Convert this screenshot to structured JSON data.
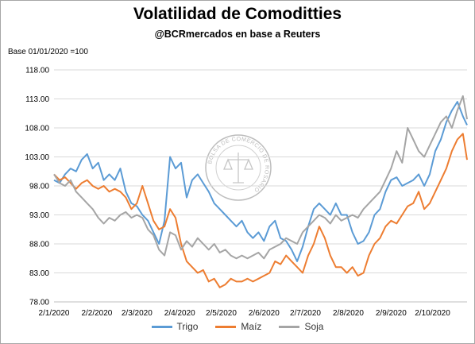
{
  "title": "Volatilidad de Comoditties",
  "subtitle": "@BCRmercados en base a Reuters",
  "base_note": "Base 01/01/2020 =100",
  "watermark_text": "BOLSA DE COMERCIO DE ROSARIO",
  "chart_data": {
    "type": "line",
    "y_ticks": [
      "118.00",
      "113.00",
      "108.00",
      "103.00",
      "98.00",
      "93.00",
      "88.00",
      "83.00",
      "78.00"
    ],
    "ylim": [
      78,
      118
    ],
    "x_ticks": [
      "2/1/2020",
      "2/2/2020",
      "2/3/2020",
      "2/4/2020",
      "2/5/2020",
      "2/6/2020",
      "2/7/2020",
      "2/8/2020",
      "2/9/2020",
      "2/10/2020"
    ],
    "x_dates": [
      "2020-01-02",
      "2020-02-02",
      "2020-03-02",
      "2020-04-02",
      "2020-05-02",
      "2020-06-02",
      "2020-07-02",
      "2020-08-02",
      "2020-09-02",
      "2020-10-02"
    ],
    "xlim": [
      "2020-01-02",
      "2020-10-27"
    ],
    "grid": "horizontal",
    "legend_position": "bottom",
    "series": [
      {
        "name": "Trigo",
        "color": "#5b9bd5",
        "points": [
          [
            "2020-01-02",
            99
          ],
          [
            "2020-01-06",
            98.5
          ],
          [
            "2020-01-10",
            100
          ],
          [
            "2020-01-14",
            101
          ],
          [
            "2020-01-18",
            100.5
          ],
          [
            "2020-01-22",
            102.5
          ],
          [
            "2020-01-26",
            103.5
          ],
          [
            "2020-01-30",
            101
          ],
          [
            "2020-02-03",
            102
          ],
          [
            "2020-02-07",
            99
          ],
          [
            "2020-02-11",
            100
          ],
          [
            "2020-02-15",
            99
          ],
          [
            "2020-02-19",
            101
          ],
          [
            "2020-02-23",
            97
          ],
          [
            "2020-02-27",
            95
          ],
          [
            "2020-03-02",
            94.5
          ],
          [
            "2020-03-06",
            93
          ],
          [
            "2020-03-10",
            92
          ],
          [
            "2020-03-14",
            90
          ],
          [
            "2020-03-18",
            88
          ],
          [
            "2020-03-22",
            92
          ],
          [
            "2020-03-26",
            103
          ],
          [
            "2020-03-30",
            101
          ],
          [
            "2020-04-03",
            102
          ],
          [
            "2020-04-07",
            96
          ],
          [
            "2020-04-11",
            99
          ],
          [
            "2020-04-15",
            100
          ],
          [
            "2020-04-19",
            98.5
          ],
          [
            "2020-04-23",
            97
          ],
          [
            "2020-04-27",
            95
          ],
          [
            "2020-05-01",
            94
          ],
          [
            "2020-05-05",
            93
          ],
          [
            "2020-05-09",
            92
          ],
          [
            "2020-05-13",
            91
          ],
          [
            "2020-05-17",
            92
          ],
          [
            "2020-05-21",
            90
          ],
          [
            "2020-05-25",
            89
          ],
          [
            "2020-05-29",
            90
          ],
          [
            "2020-06-02",
            88.5
          ],
          [
            "2020-06-06",
            91
          ],
          [
            "2020-06-10",
            92
          ],
          [
            "2020-06-14",
            89
          ],
          [
            "2020-06-18",
            88.5
          ],
          [
            "2020-06-22",
            87
          ],
          [
            "2020-06-26",
            85
          ],
          [
            "2020-06-30",
            87.5
          ],
          [
            "2020-07-04",
            91
          ],
          [
            "2020-07-08",
            94
          ],
          [
            "2020-07-12",
            95
          ],
          [
            "2020-07-16",
            94
          ],
          [
            "2020-07-20",
            93
          ],
          [
            "2020-07-24",
            95
          ],
          [
            "2020-07-28",
            93
          ],
          [
            "2020-08-01",
            93
          ],
          [
            "2020-08-05",
            90
          ],
          [
            "2020-08-09",
            88
          ],
          [
            "2020-08-13",
            88.5
          ],
          [
            "2020-08-17",
            90
          ],
          [
            "2020-08-21",
            93
          ],
          [
            "2020-08-25",
            94
          ],
          [
            "2020-08-29",
            97
          ],
          [
            "2020-09-02",
            99
          ],
          [
            "2020-09-06",
            99.5
          ],
          [
            "2020-09-10",
            98
          ],
          [
            "2020-09-14",
            98.5
          ],
          [
            "2020-09-18",
            99
          ],
          [
            "2020-09-22",
            100
          ],
          [
            "2020-09-26",
            98
          ],
          [
            "2020-09-30",
            100
          ],
          [
            "2020-10-04",
            104
          ],
          [
            "2020-10-08",
            106
          ],
          [
            "2020-10-12",
            109
          ],
          [
            "2020-10-16",
            111
          ],
          [
            "2020-10-20",
            112.5
          ],
          [
            "2020-10-24",
            110
          ],
          [
            "2020-10-27",
            108.5
          ]
        ]
      },
      {
        "name": "Maíz",
        "color": "#ed7d31",
        "points": [
          [
            "2020-01-02",
            100
          ],
          [
            "2020-01-06",
            99
          ],
          [
            "2020-01-10",
            99.5
          ],
          [
            "2020-01-14",
            98.5
          ],
          [
            "2020-01-18",
            97.5
          ],
          [
            "2020-01-22",
            98.5
          ],
          [
            "2020-01-26",
            99
          ],
          [
            "2020-01-30",
            98
          ],
          [
            "2020-02-03",
            97.5
          ],
          [
            "2020-02-07",
            98
          ],
          [
            "2020-02-11",
            97
          ],
          [
            "2020-02-15",
            97.5
          ],
          [
            "2020-02-19",
            97
          ],
          [
            "2020-02-23",
            96
          ],
          [
            "2020-02-27",
            94
          ],
          [
            "2020-03-02",
            95
          ],
          [
            "2020-03-06",
            98
          ],
          [
            "2020-03-10",
            95
          ],
          [
            "2020-03-14",
            92
          ],
          [
            "2020-03-18",
            90.5
          ],
          [
            "2020-03-22",
            91
          ],
          [
            "2020-03-26",
            94
          ],
          [
            "2020-03-30",
            92.5
          ],
          [
            "2020-04-03",
            88
          ],
          [
            "2020-04-07",
            85
          ],
          [
            "2020-04-11",
            84
          ],
          [
            "2020-04-15",
            83
          ],
          [
            "2020-04-19",
            83.5
          ],
          [
            "2020-04-23",
            81.5
          ],
          [
            "2020-04-27",
            82
          ],
          [
            "2020-05-01",
            80.5
          ],
          [
            "2020-05-05",
            81
          ],
          [
            "2020-05-09",
            82
          ],
          [
            "2020-05-13",
            81.5
          ],
          [
            "2020-05-17",
            81.5
          ],
          [
            "2020-05-21",
            82
          ],
          [
            "2020-05-25",
            81.5
          ],
          [
            "2020-05-29",
            82
          ],
          [
            "2020-06-02",
            82.5
          ],
          [
            "2020-06-06",
            83
          ],
          [
            "2020-06-10",
            85
          ],
          [
            "2020-06-14",
            84.5
          ],
          [
            "2020-06-18",
            86
          ],
          [
            "2020-06-22",
            85
          ],
          [
            "2020-06-26",
            84
          ],
          [
            "2020-06-30",
            83
          ],
          [
            "2020-07-04",
            86
          ],
          [
            "2020-07-08",
            88
          ],
          [
            "2020-07-12",
            91
          ],
          [
            "2020-07-16",
            89
          ],
          [
            "2020-07-20",
            86
          ],
          [
            "2020-07-24",
            84
          ],
          [
            "2020-07-28",
            84
          ],
          [
            "2020-08-01",
            83
          ],
          [
            "2020-08-05",
            84
          ],
          [
            "2020-08-09",
            82.5
          ],
          [
            "2020-08-13",
            83
          ],
          [
            "2020-08-17",
            86
          ],
          [
            "2020-08-21",
            88
          ],
          [
            "2020-08-25",
            89
          ],
          [
            "2020-08-29",
            91
          ],
          [
            "2020-09-02",
            92
          ],
          [
            "2020-09-06",
            91.5
          ],
          [
            "2020-09-10",
            93
          ],
          [
            "2020-09-14",
            94.5
          ],
          [
            "2020-09-18",
            95
          ],
          [
            "2020-09-22",
            97
          ],
          [
            "2020-09-26",
            94
          ],
          [
            "2020-09-30",
            95
          ],
          [
            "2020-10-04",
            97
          ],
          [
            "2020-10-08",
            99
          ],
          [
            "2020-10-12",
            101
          ],
          [
            "2020-10-16",
            104
          ],
          [
            "2020-10-20",
            106
          ],
          [
            "2020-10-24",
            107
          ],
          [
            "2020-10-27",
            102.5
          ]
        ]
      },
      {
        "name": "Soja",
        "color": "#a5a5a5",
        "points": [
          [
            "2020-01-02",
            100
          ],
          [
            "2020-01-06",
            98.5
          ],
          [
            "2020-01-10",
            98
          ],
          [
            "2020-01-14",
            99
          ],
          [
            "2020-01-18",
            97
          ],
          [
            "2020-01-22",
            96
          ],
          [
            "2020-01-26",
            95
          ],
          [
            "2020-01-30",
            94
          ],
          [
            "2020-02-03",
            92.5
          ],
          [
            "2020-02-07",
            91.5
          ],
          [
            "2020-02-11",
            92.5
          ],
          [
            "2020-02-15",
            92
          ],
          [
            "2020-02-19",
            93
          ],
          [
            "2020-02-23",
            93.5
          ],
          [
            "2020-02-27",
            92.5
          ],
          [
            "2020-03-02",
            93
          ],
          [
            "2020-03-06",
            92.5
          ],
          [
            "2020-03-10",
            90.5
          ],
          [
            "2020-03-14",
            89.5
          ],
          [
            "2020-03-18",
            87
          ],
          [
            "2020-03-22",
            86
          ],
          [
            "2020-03-26",
            90
          ],
          [
            "2020-03-30",
            89.5
          ],
          [
            "2020-04-03",
            87
          ],
          [
            "2020-04-07",
            88.5
          ],
          [
            "2020-04-11",
            87.5
          ],
          [
            "2020-04-15",
            89
          ],
          [
            "2020-04-19",
            88
          ],
          [
            "2020-04-23",
            87
          ],
          [
            "2020-04-27",
            88
          ],
          [
            "2020-05-01",
            86.5
          ],
          [
            "2020-05-05",
            87
          ],
          [
            "2020-05-09",
            86
          ],
          [
            "2020-05-13",
            85.5
          ],
          [
            "2020-05-17",
            86
          ],
          [
            "2020-05-21",
            85.5
          ],
          [
            "2020-05-25",
            86
          ],
          [
            "2020-05-29",
            86.5
          ],
          [
            "2020-06-02",
            85.5
          ],
          [
            "2020-06-06",
            87
          ],
          [
            "2020-06-10",
            87.5
          ],
          [
            "2020-06-14",
            88
          ],
          [
            "2020-06-18",
            89
          ],
          [
            "2020-06-22",
            88.5
          ],
          [
            "2020-06-26",
            88
          ],
          [
            "2020-06-30",
            90
          ],
          [
            "2020-07-04",
            91
          ],
          [
            "2020-07-08",
            92
          ],
          [
            "2020-07-12",
            93
          ],
          [
            "2020-07-16",
            92.5
          ],
          [
            "2020-07-20",
            91.5
          ],
          [
            "2020-07-24",
            93
          ],
          [
            "2020-07-28",
            92
          ],
          [
            "2020-08-01",
            92.5
          ],
          [
            "2020-08-05",
            93
          ],
          [
            "2020-08-09",
            92.5
          ],
          [
            "2020-08-13",
            94
          ],
          [
            "2020-08-17",
            95
          ],
          [
            "2020-08-21",
            96
          ],
          [
            "2020-08-25",
            97
          ],
          [
            "2020-08-29",
            99
          ],
          [
            "2020-09-02",
            101
          ],
          [
            "2020-09-06",
            104
          ],
          [
            "2020-09-10",
            102
          ],
          [
            "2020-09-14",
            108
          ],
          [
            "2020-09-18",
            106
          ],
          [
            "2020-09-22",
            104
          ],
          [
            "2020-09-26",
            103
          ],
          [
            "2020-09-30",
            105
          ],
          [
            "2020-10-04",
            107
          ],
          [
            "2020-10-08",
            109
          ],
          [
            "2020-10-12",
            110
          ],
          [
            "2020-10-16",
            108
          ],
          [
            "2020-10-20",
            111
          ],
          [
            "2020-10-24",
            113.5
          ],
          [
            "2020-10-27",
            109.5
          ]
        ]
      }
    ]
  }
}
